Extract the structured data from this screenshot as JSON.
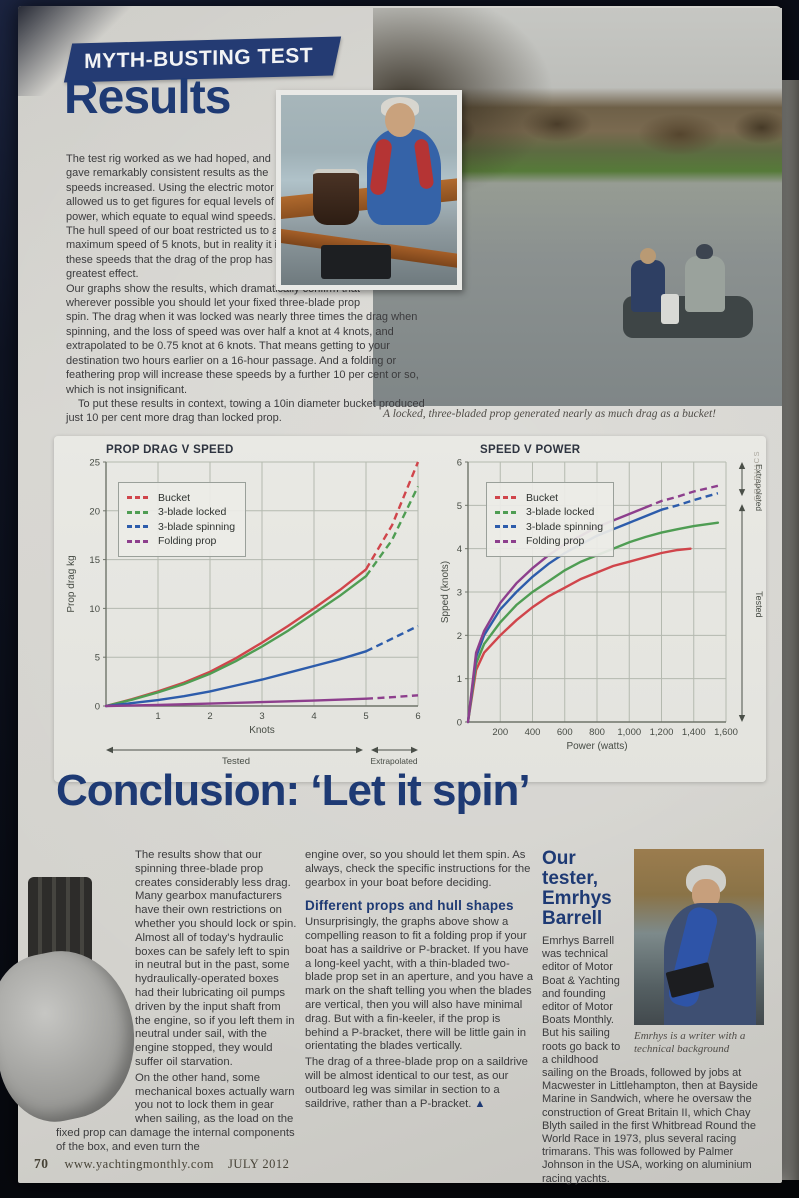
{
  "header": {
    "banner": "MYTH-BUSTING TEST",
    "title": "Results"
  },
  "results": {
    "para1": "The test rig worked as we had hoped, and gave remarkably consistent results as the speeds increased. Using the electric motor allowed us to get figures for equal levels of power, which equate to equal wind speeds. The hull speed of our boat restricted us to a maximum speed of 5 knots, but in reality it is at these speeds that the drag of the prop has its greatest effect.",
    "para2": "Our graphs show the results, which dramatically confirm that wherever possible you should let your fixed three-blade prop spin. The drag when it was locked was nearly three times the drag when spinning, and the loss of speed was over half a knot at 4 knots, and extrapolated to be 0.75 knot at 6 knots. That means getting to your destination two hours earlier on a 16-hour passage. And a folding or feathering prop will increase these speeds by a further 10 per cent or so, which is not insignificant.",
    "para3": "To put these results in context, towing a 10in diameter bucket produced just 10 per cent more drag than locked prop."
  },
  "photo_caption": "A locked, three-bladed prop generated nearly as much drag as a bucket!",
  "credits": {
    "graphics": "GRAPHICS"
  },
  "chart_data": [
    {
      "type": "line",
      "title": "PROP DRAG V SPEED",
      "xlabel": "Knots",
      "ylabel": "Prop drag kg",
      "xlim": [
        0,
        6
      ],
      "ylim": [
        0,
        25
      ],
      "xticks": [
        1,
        2,
        3,
        4,
        5,
        6
      ],
      "yticks": [
        0,
        5,
        10,
        15,
        20,
        25
      ],
      "tested_to_x": 5,
      "annotations": {
        "tested": "Tested",
        "extrapolated": "Extrapolated"
      },
      "legend_position": "top-left",
      "grid": true,
      "series": [
        {
          "name": "Bucket",
          "color": "#d0454b",
          "dash_from": 5,
          "points": [
            [
              0,
              0
            ],
            [
              0.5,
              0.7
            ],
            [
              1,
              1.5
            ],
            [
              1.5,
              2.4
            ],
            [
              2,
              3.5
            ],
            [
              2.5,
              4.9
            ],
            [
              3,
              6.5
            ],
            [
              3.5,
              8.2
            ],
            [
              4,
              10
            ],
            [
              4.5,
              11.9
            ],
            [
              5,
              14
            ],
            [
              5.5,
              18.5
            ],
            [
              6,
              25
            ]
          ]
        },
        {
          "name": "3-blade locked",
          "color": "#4f9d53",
          "dash_from": 5,
          "points": [
            [
              0,
              0
            ],
            [
              0.5,
              0.65
            ],
            [
              1,
              1.4
            ],
            [
              1.5,
              2.25
            ],
            [
              2,
              3.3
            ],
            [
              2.5,
              4.6
            ],
            [
              3,
              6.1
            ],
            [
              3.5,
              7.7
            ],
            [
              4,
              9.5
            ],
            [
              4.5,
              11.3
            ],
            [
              5,
              13.3
            ],
            [
              5.5,
              17
            ],
            [
              6,
              22.5
            ]
          ]
        },
        {
          "name": "3-blade spinning",
          "color": "#2d5cab",
          "dash_from": 5,
          "points": [
            [
              0,
              0
            ],
            [
              0.5,
              0.3
            ],
            [
              1,
              0.6
            ],
            [
              1.5,
              1.0
            ],
            [
              2,
              1.5
            ],
            [
              2.5,
              2.1
            ],
            [
              3,
              2.7
            ],
            [
              3.5,
              3.4
            ],
            [
              4,
              4.1
            ],
            [
              4.5,
              4.8
            ],
            [
              5,
              5.6
            ],
            [
              5.5,
              6.9
            ],
            [
              6,
              8.2
            ]
          ]
        },
        {
          "name": "Folding prop",
          "color": "#8d3f8d",
          "dash_from": 5,
          "points": [
            [
              0,
              0
            ],
            [
              1,
              0.1
            ],
            [
              2,
              0.25
            ],
            [
              3,
              0.4
            ],
            [
              4,
              0.55
            ],
            [
              5,
              0.75
            ],
            [
              5.5,
              0.9
            ],
            [
              6,
              1.1
            ]
          ]
        }
      ]
    },
    {
      "type": "line",
      "title": "SPEED V POWER",
      "xlabel": "Power (watts)",
      "ylabel": "Spped (knots)",
      "xlim": [
        0,
        1600
      ],
      "ylim": [
        0,
        6
      ],
      "xticks": [
        200,
        400,
        600,
        800,
        1000,
        1200,
        1400,
        1600
      ],
      "xtick_labels": [
        "200",
        "400",
        "600",
        "800",
        "1,000",
        "1,200",
        "1,400",
        "1,600"
      ],
      "yticks": [
        0,
        1,
        2,
        3,
        4,
        5,
        6
      ],
      "right_annotations": {
        "extrapolated": "Extrapolated",
        "tested": "Tested"
      },
      "legend_position": "top-left",
      "grid": true,
      "series": [
        {
          "name": "Bucket",
          "color": "#d0454b",
          "dash_from": null,
          "points": [
            [
              0,
              0
            ],
            [
              50,
              1.2
            ],
            [
              100,
              1.6
            ],
            [
              200,
              2.0
            ],
            [
              300,
              2.35
            ],
            [
              400,
              2.65
            ],
            [
              500,
              2.9
            ],
            [
              600,
              3.1
            ],
            [
              700,
              3.3
            ],
            [
              800,
              3.45
            ],
            [
              900,
              3.6
            ],
            [
              1000,
              3.7
            ],
            [
              1100,
              3.8
            ],
            [
              1200,
              3.9
            ],
            [
              1300,
              3.97
            ],
            [
              1380,
              4.0
            ]
          ]
        },
        {
          "name": "3-blade locked",
          "color": "#4f9d53",
          "dash_from": null,
          "points": [
            [
              0,
              0
            ],
            [
              50,
              1.35
            ],
            [
              100,
              1.8
            ],
            [
              200,
              2.3
            ],
            [
              300,
              2.7
            ],
            [
              400,
              3.0
            ],
            [
              500,
              3.25
            ],
            [
              600,
              3.5
            ],
            [
              700,
              3.7
            ],
            [
              800,
              3.85
            ],
            [
              900,
              4.0
            ],
            [
              1000,
              4.15
            ],
            [
              1100,
              4.27
            ],
            [
              1200,
              4.37
            ],
            [
              1300,
              4.45
            ],
            [
              1400,
              4.52
            ],
            [
              1550,
              4.6
            ]
          ]
        },
        {
          "name": "3-blade spinning",
          "color": "#2d5cab",
          "dash_from": 1200,
          "points": [
            [
              0,
              0
            ],
            [
              50,
              1.5
            ],
            [
              100,
              2.0
            ],
            [
              200,
              2.6
            ],
            [
              300,
              3.0
            ],
            [
              400,
              3.35
            ],
            [
              500,
              3.65
            ],
            [
              600,
              3.9
            ],
            [
              700,
              4.1
            ],
            [
              800,
              4.3
            ],
            [
              900,
              4.45
            ],
            [
              1000,
              4.6
            ],
            [
              1100,
              4.75
            ],
            [
              1200,
              4.9
            ],
            [
              1300,
              5.0
            ],
            [
              1400,
              5.12
            ],
            [
              1550,
              5.28
            ]
          ]
        },
        {
          "name": "Folding prop",
          "color": "#8d3f8d",
          "dash_from": 1100,
          "points": [
            [
              0,
              0
            ],
            [
              50,
              1.6
            ],
            [
              100,
              2.1
            ],
            [
              200,
              2.75
            ],
            [
              300,
              3.2
            ],
            [
              400,
              3.55
            ],
            [
              500,
              3.85
            ],
            [
              600,
              4.1
            ],
            [
              700,
              4.3
            ],
            [
              800,
              4.5
            ],
            [
              900,
              4.65
            ],
            [
              1000,
              4.8
            ],
            [
              1100,
              4.95
            ],
            [
              1200,
              5.1
            ],
            [
              1300,
              5.2
            ],
            [
              1400,
              5.32
            ],
            [
              1550,
              5.45
            ]
          ]
        }
      ]
    }
  ],
  "conclusion": {
    "title": "Conclusion: ‘Let it spin’",
    "col1_para1": "The results show that our spinning three-blade prop creates considerably less drag. Many gearbox manufacturers have their own restrictions on whether you should lock or spin. Almost all of today's hydraulic boxes can be safely left to spin in neutral but in the past, some hydraulically-operated boxes had their lubricating oil pumps driven by the input shaft from the engine, so if you left them in neutral under sail, with the engine stopped, they would suffer oil starvation.",
    "col1_para2": "On the other hand, some mechanical boxes actually warn you not to lock them in gear when sailing, as the load on the fixed prop can damage the internal components of the box, and even turn the",
    "col2_para1": "engine over, so you should let them spin. As always, check the specific instructions for the gearbox in your boat before deciding.",
    "subhead": "Different props and hull shapes",
    "col2_para2": "Unsurprisingly, the graphs above show a compelling reason to fit a folding prop if your boat has a saildrive or P-bracket. If you have a long-keel yacht, with a thin-bladed two-blade prop set in an aperture, and you have a mark on the shaft telling you when the blades are vertical, then you will also have minimal drag. But with a fin-keeler, if the prop is behind a P-bracket, there will be little gain in orientating the blades vertically.",
    "col2_para3": "The drag of a three-blade prop on a saildrive will be almost identical to our test, as our outboard leg was similar in section to a saildrive, rather than a P-bracket. ",
    "end_marker": "▲"
  },
  "tester": {
    "heading": "Our tester, Emrhys Barrell",
    "bio": "Emrhys Barrell was technical editor of Motor Boat & Yachting and founding editor of Motor Boats Monthly. But his sailing roots go back to a childhood sailing on the Broads, followed by jobs at Macwester in Littlehampton, then at Bayside Marine in Sandwich, where he oversaw the construction of Great Britain II, which Chay Blyth sailed in the first Whitbread Round the World Race in 1973, plus several racing trimarans. This was followed by Palmer Johnson in the USA, working on aluminium racing yachts.",
    "photo_caption": "Emrhys is a writer with a technical background"
  },
  "footer": {
    "page_number": "70",
    "website": "www.yachtingmonthly.com",
    "issue": "JULY 2012"
  }
}
